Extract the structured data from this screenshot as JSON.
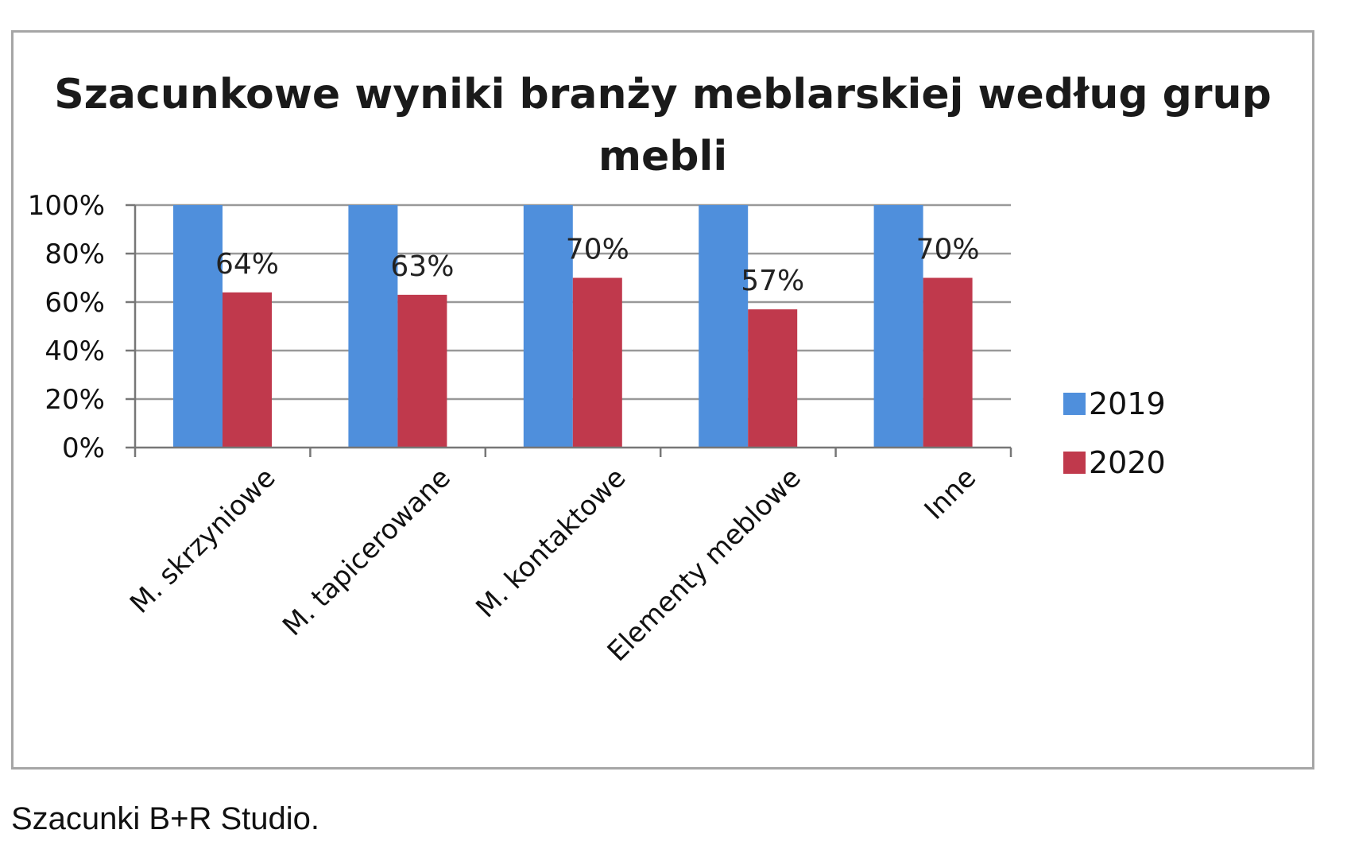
{
  "chart_data": {
    "type": "bar",
    "title": "Szacunkowe wyniki branży meblarskiej według grup mebli",
    "xlabel": "",
    "ylabel": "",
    "ylim": [
      0,
      100
    ],
    "y_ticks": [
      "0%",
      "20%",
      "40%",
      "60%",
      "80%",
      "100%"
    ],
    "y_tick_values": [
      0,
      20,
      40,
      60,
      80,
      100
    ],
    "categories": [
      "M. skrzyniowe",
      "M. tapicerowane",
      "M. kontaktowe",
      "Elementy meblowe",
      "Inne"
    ],
    "series": [
      {
        "name": "2019",
        "values": [
          100,
          100,
          100,
          100,
          100
        ],
        "color": "#4f8fdc",
        "labels": [
          "",
          "",
          "",
          "",
          ""
        ]
      },
      {
        "name": "2020",
        "values": [
          64,
          63,
          70,
          57,
          70
        ],
        "color": "#c0394c",
        "labels": [
          "64%",
          "63%",
          "70%",
          "57%",
          "70%"
        ]
      }
    ],
    "grid": true,
    "legend": "right",
    "gridline_color": "#999999"
  },
  "footer": {
    "source": "Szacunki B+R Studio."
  }
}
